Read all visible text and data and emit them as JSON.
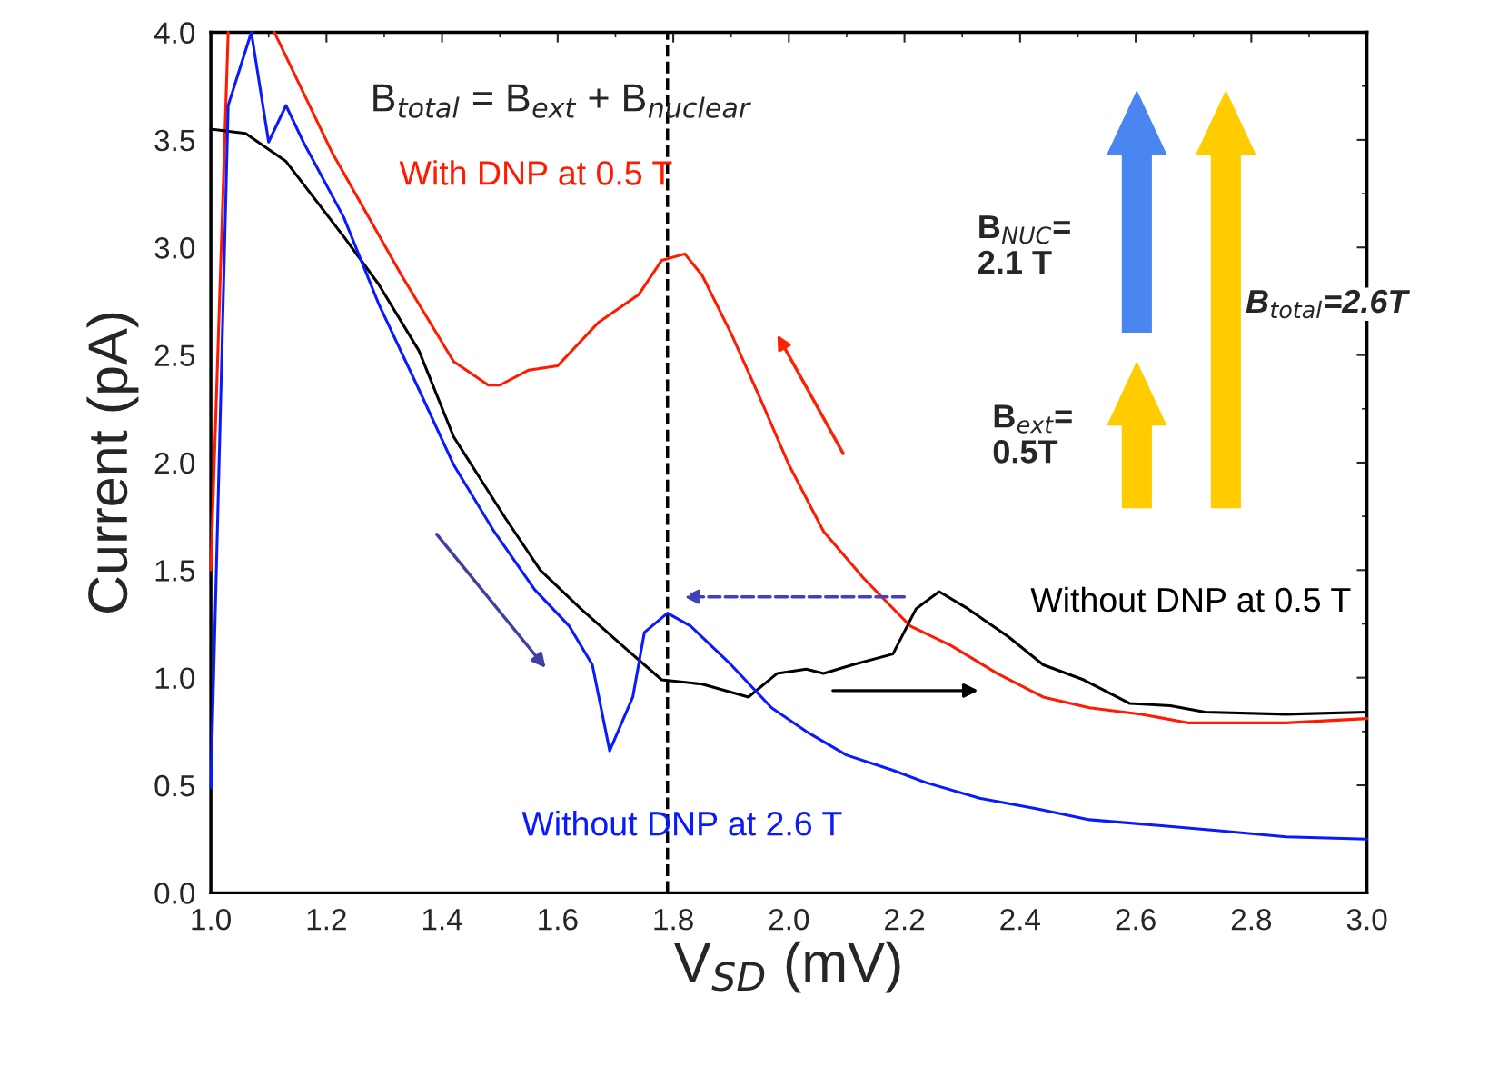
{
  "chart_data": {
    "type": "line",
    "xlabel": "V$_{SD}$ (mV)",
    "ylabel": "Current (pA)",
    "xlim": [
      1.0,
      3.0
    ],
    "ylim": [
      0.0,
      4.0
    ],
    "xticks": [
      {
        "value": 1.0,
        "label": "1.0"
      },
      {
        "value": 1.2,
        "label": "1.2"
      },
      {
        "value": 1.4,
        "label": "1.4"
      },
      {
        "value": 1.6,
        "label": "1.6"
      },
      {
        "value": 1.8,
        "label": "1.8"
      },
      {
        "value": 2.0,
        "label": "2.0"
      },
      {
        "value": 2.2,
        "label": "2.2"
      },
      {
        "value": 2.4,
        "label": "2.4"
      },
      {
        "value": 2.6,
        "label": "2.6"
      },
      {
        "value": 2.8,
        "label": "2.8"
      },
      {
        "value": 3.0,
        "label": "3.0"
      }
    ],
    "yticks": [
      {
        "value": 0.0,
        "label": "0.0"
      },
      {
        "value": 0.5,
        "label": "0.5"
      },
      {
        "value": 1.0,
        "label": "1.0"
      },
      {
        "value": 1.5,
        "label": "1.5"
      },
      {
        "value": 2.0,
        "label": "2.0"
      },
      {
        "value": 2.5,
        "label": "2.5"
      },
      {
        "value": 3.0,
        "label": "3.0"
      },
      {
        "value": 3.5,
        "label": "3.5"
      },
      {
        "value": 4.0,
        "label": "4.0"
      }
    ],
    "grid": false,
    "legend": false,
    "marker": "none",
    "line_style": "solid",
    "series": [
      {
        "name": "With DNP at 0.5 T",
        "color": "#ff1a00",
        "x": [
          1.0,
          1.03,
          1.07,
          1.11,
          1.21,
          1.33,
          1.42,
          1.48,
          1.5,
          1.55,
          1.6,
          1.67,
          1.74,
          1.78,
          1.82,
          1.85,
          1.9,
          1.95,
          2.0,
          2.06,
          2.13,
          2.21,
          2.28,
          2.36,
          2.44,
          2.52,
          2.61,
          2.69,
          2.77,
          2.86,
          3.0
        ],
        "values": [
          1.5,
          4.0,
          null,
          4.0,
          3.44,
          2.87,
          2.47,
          2.36,
          2.36,
          2.43,
          2.45,
          2.65,
          2.78,
          2.94,
          2.97,
          2.87,
          2.6,
          2.3,
          1.99,
          1.68,
          1.46,
          1.24,
          1.15,
          1.02,
          0.91,
          0.86,
          0.83,
          0.79,
          0.79,
          0.79,
          0.81
        ]
      },
      {
        "name": "Without DNP at 0.5 T",
        "color": "#000000",
        "x": [
          1.0,
          1.06,
          1.13,
          1.23,
          1.29,
          1.36,
          1.42,
          1.51,
          1.57,
          1.64,
          1.72,
          1.78,
          1.85,
          1.93,
          1.98,
          2.03,
          2.06,
          2.11,
          2.18,
          2.22,
          2.26,
          2.31,
          2.38,
          2.44,
          2.51,
          2.59,
          2.66,
          2.72,
          2.86,
          3.0
        ],
        "values": [
          3.55,
          3.53,
          3.4,
          3.05,
          2.83,
          2.52,
          2.12,
          1.74,
          1.5,
          1.32,
          1.13,
          0.99,
          0.97,
          0.91,
          1.02,
          1.04,
          1.02,
          1.06,
          1.11,
          1.32,
          1.4,
          1.32,
          1.19,
          1.06,
          0.99,
          0.88,
          0.87,
          0.84,
          0.83,
          0.84
        ]
      },
      {
        "name": "Without DNP at 2.6 T",
        "color": "#0a1aff",
        "x": [
          1.0,
          1.03,
          1.07,
          1.1,
          1.13,
          1.16,
          1.23,
          1.29,
          1.36,
          1.42,
          1.49,
          1.56,
          1.62,
          1.66,
          1.69,
          1.73,
          1.75,
          1.79,
          1.83,
          1.9,
          1.97,
          2.03,
          2.1,
          2.18,
          2.24,
          2.33,
          2.43,
          2.52,
          2.61,
          2.74,
          2.86,
          3.0
        ],
        "values": [
          0.49,
          3.66,
          4.0,
          3.49,
          3.66,
          3.49,
          3.14,
          2.74,
          2.34,
          1.99,
          1.68,
          1.41,
          1.24,
          1.06,
          0.66,
          0.91,
          1.21,
          1.3,
          1.24,
          1.06,
          0.86,
          0.75,
          0.64,
          0.57,
          0.51,
          0.44,
          0.39,
          0.34,
          0.32,
          0.29,
          0.26,
          0.25
        ]
      }
    ],
    "ref_lines": [
      {
        "axis": "x",
        "value": 1.79,
        "color": "#000000",
        "line_style": "dashed"
      }
    ],
    "annotations": [
      "B$_{total}$ = B$_{ext}$ + B$_{nuclear}$",
      "B$_{NUC}$=\n2.1 T",
      "B$_{ext}$=\n0.5T",
      "B$_{total}$=2.6T"
    ]
  }
}
